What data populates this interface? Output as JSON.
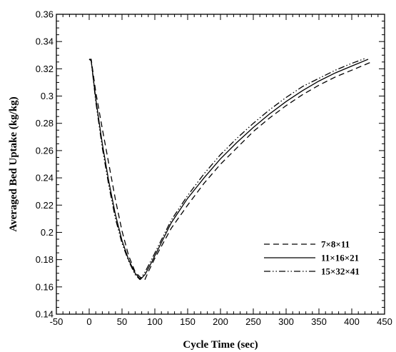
{
  "chart_data": {
    "type": "line",
    "xlabel": "Cycle Time (sec)",
    "ylabel": "Averaged Bed Uptake (kg/kg)",
    "xlim": [
      -50,
      450
    ],
    "ylim": [
      0.14,
      0.36
    ],
    "x_ticks": [
      -50,
      0,
      50,
      100,
      150,
      200,
      250,
      300,
      350,
      400,
      450
    ],
    "x_tick_labels": [
      "-50",
      "0",
      "50",
      "100",
      "150",
      "200",
      "250",
      "300",
      "350",
      "400",
      "450"
    ],
    "y_ticks": [
      0.14,
      0.16,
      0.18,
      0.2,
      0.22,
      0.24,
      0.26,
      0.28,
      0.3,
      0.32,
      0.34,
      0.36
    ],
    "y_tick_labels": [
      "0.14",
      "0.16",
      "0.18",
      "0.2",
      "0.22",
      "0.24",
      "0.26",
      "0.28",
      "0.3",
      "0.32",
      "0.34",
      "0.36"
    ],
    "grid": false,
    "legend_position": "bottom-right",
    "series": [
      {
        "name": "7×8×11",
        "dash": "dashed",
        "color": "#000000",
        "points": [
          [
            0,
            0.327
          ],
          [
            3,
            0.327
          ],
          [
            10,
            0.303
          ],
          [
            20,
            0.276
          ],
          [
            30,
            0.25
          ],
          [
            40,
            0.224
          ],
          [
            50,
            0.201
          ],
          [
            60,
            0.183
          ],
          [
            70,
            0.171
          ],
          [
            80,
            0.166
          ],
          [
            85,
            0.1655
          ],
          [
            90,
            0.171
          ],
          [
            100,
            0.181
          ],
          [
            125,
            0.203
          ],
          [
            150,
            0.22
          ],
          [
            175,
            0.236
          ],
          [
            200,
            0.25
          ],
          [
            225,
            0.262
          ],
          [
            250,
            0.274
          ],
          [
            275,
            0.284
          ],
          [
            300,
            0.293
          ],
          [
            325,
            0.301
          ],
          [
            350,
            0.308
          ],
          [
            375,
            0.314
          ],
          [
            400,
            0.319
          ],
          [
            430,
            0.325
          ]
        ]
      },
      {
        "name": "11×16×21",
        "dash": "solid",
        "color": "#000000",
        "points": [
          [
            0,
            0.327
          ],
          [
            3,
            0.326
          ],
          [
            10,
            0.298
          ],
          [
            20,
            0.265
          ],
          [
            30,
            0.237
          ],
          [
            40,
            0.213
          ],
          [
            50,
            0.194
          ],
          [
            60,
            0.18
          ],
          [
            70,
            0.17
          ],
          [
            78,
            0.1655
          ],
          [
            85,
            0.169
          ],
          [
            95,
            0.178
          ],
          [
            125,
            0.207
          ],
          [
            150,
            0.225
          ],
          [
            175,
            0.24
          ],
          [
            200,
            0.254
          ],
          [
            225,
            0.266
          ],
          [
            250,
            0.277
          ],
          [
            275,
            0.287
          ],
          [
            300,
            0.296
          ],
          [
            325,
            0.304
          ],
          [
            350,
            0.311
          ],
          [
            375,
            0.317
          ],
          [
            400,
            0.322
          ],
          [
            425,
            0.327
          ]
        ]
      },
      {
        "name": "15×32×41",
        "dash": "dashdotdot",
        "color": "#000000",
        "points": [
          [
            0,
            0.327
          ],
          [
            3,
            0.326
          ],
          [
            10,
            0.296
          ],
          [
            20,
            0.262
          ],
          [
            30,
            0.234
          ],
          [
            40,
            0.21
          ],
          [
            50,
            0.192
          ],
          [
            60,
            0.179
          ],
          [
            70,
            0.169
          ],
          [
            77,
            0.1655
          ],
          [
            84,
            0.17
          ],
          [
            95,
            0.18
          ],
          [
            125,
            0.209
          ],
          [
            150,
            0.227
          ],
          [
            175,
            0.243
          ],
          [
            200,
            0.257
          ],
          [
            225,
            0.269
          ],
          [
            250,
            0.28
          ],
          [
            275,
            0.29
          ],
          [
            300,
            0.299
          ],
          [
            325,
            0.307
          ],
          [
            350,
            0.313
          ],
          [
            375,
            0.319
          ],
          [
            400,
            0.324
          ],
          [
            420,
            0.3275
          ]
        ]
      }
    ]
  }
}
